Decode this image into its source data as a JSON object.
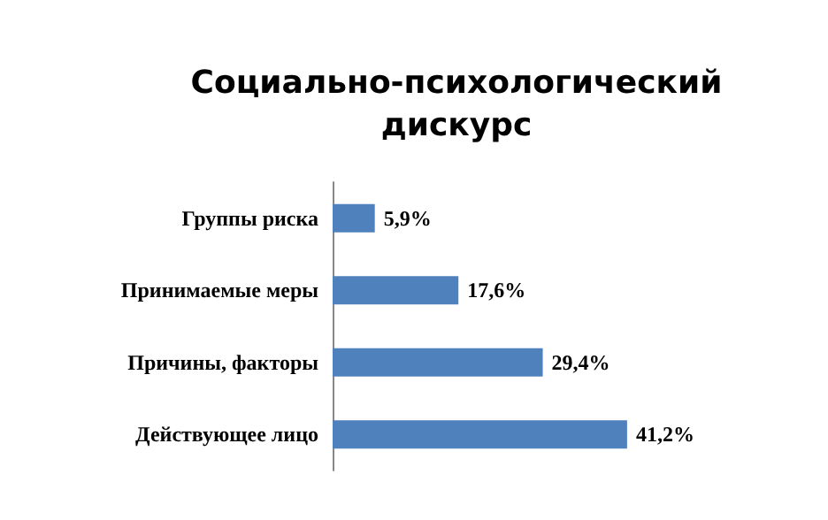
{
  "chart_data": {
    "type": "bar",
    "orientation": "horizontal",
    "title": "Социально-психологический\nдискурс",
    "categories": [
      "Группы риска",
      "Принимаемые меры",
      "Причины, факторы",
      "Действующее лицо"
    ],
    "values": [
      5.9,
      17.6,
      29.4,
      41.2
    ],
    "value_labels": [
      "5,9%",
      "17,6%",
      "29,4%",
      "41,2%"
    ],
    "color": "#4f81bd",
    "grid": false
  }
}
